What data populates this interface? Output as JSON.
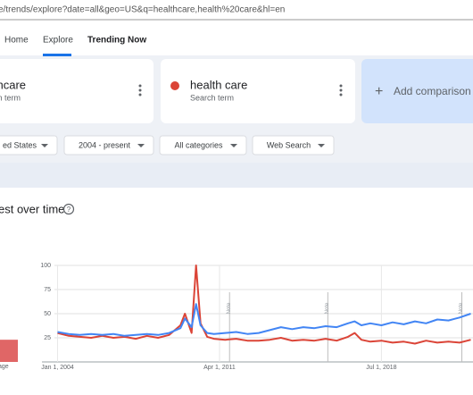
{
  "address_bar": {
    "url": "e/trends/explore?date=all&geo=US&q=healthcare,health%20care&hl=en"
  },
  "tabs": [
    "Home",
    "Explore",
    "Trending Now"
  ],
  "terms": [
    {
      "name": "lthcare",
      "subtitle": "rch term",
      "color": "#4285f4"
    },
    {
      "name": "health care",
      "subtitle": "Search term",
      "color": "#db4437"
    }
  ],
  "add_comparison": "Add comparison",
  "filters": [
    "ed States",
    "2004 - present",
    "All categories",
    "Web Search"
  ],
  "section_title": "est over time",
  "average": {
    "label": "age",
    "values": [
      23
    ],
    "color": "#e06666"
  },
  "interest_chart": {
    "type": "line",
    "x": [
      2004,
      2004.5,
      2005,
      2005.5,
      2006,
      2006.5,
      2007,
      2007.5,
      2008,
      2008.5,
      2009,
      2009.5,
      2009.7,
      2010,
      2010.2,
      2010.4,
      2010.7,
      2011,
      2011.5,
      2012,
      2012.5,
      2013,
      2013.5,
      2014,
      2014.5,
      2015,
      2015.5,
      2016,
      2016.5,
      2017,
      2017.3,
      2017.6,
      2018,
      2018.5,
      2019,
      2019.5,
      2020,
      2020.5,
      2021,
      2021.5,
      2022,
      2022.5
    ],
    "series": [
      {
        "name": "lthcare",
        "color": "#4285f4",
        "values": [
          31,
          29,
          28,
          29,
          28,
          29,
          27,
          28,
          29,
          28,
          30,
          35,
          45,
          36,
          60,
          38,
          30,
          29,
          30,
          31,
          29,
          30,
          33,
          36,
          34,
          36,
          35,
          37,
          36,
          40,
          42,
          38,
          40,
          38,
          41,
          39,
          42,
          40,
          44,
          43,
          46,
          50
        ]
      },
      {
        "name": "health care",
        "color": "#db4437",
        "values": [
          30,
          27,
          26,
          25,
          27,
          25,
          26,
          24,
          27,
          25,
          28,
          38,
          50,
          30,
          100,
          40,
          26,
          24,
          23,
          24,
          22,
          22,
          23,
          25,
          22,
          23,
          22,
          24,
          22,
          26,
          30,
          23,
          21,
          22,
          20,
          21,
          19,
          22,
          20,
          21,
          20,
          23
        ]
      }
    ],
    "xlim": [
      2003.3,
      2022.6
    ],
    "ylim": [
      0,
      100
    ],
    "yticks": [
      25,
      50,
      75,
      100
    ],
    "xticks": [
      {
        "value": 2004,
        "label": "Jan 1, 2004"
      },
      {
        "value": 2011.25,
        "label": "Apr 1, 2011"
      },
      {
        "value": 2018.5,
        "label": "Jul 1, 2018"
      }
    ],
    "notes": [
      {
        "x": 2011.7,
        "label": "Note"
      },
      {
        "x": 2016.1,
        "label": "Note"
      },
      {
        "x": 2022.1,
        "label": "Note"
      }
    ],
    "grid": true
  }
}
